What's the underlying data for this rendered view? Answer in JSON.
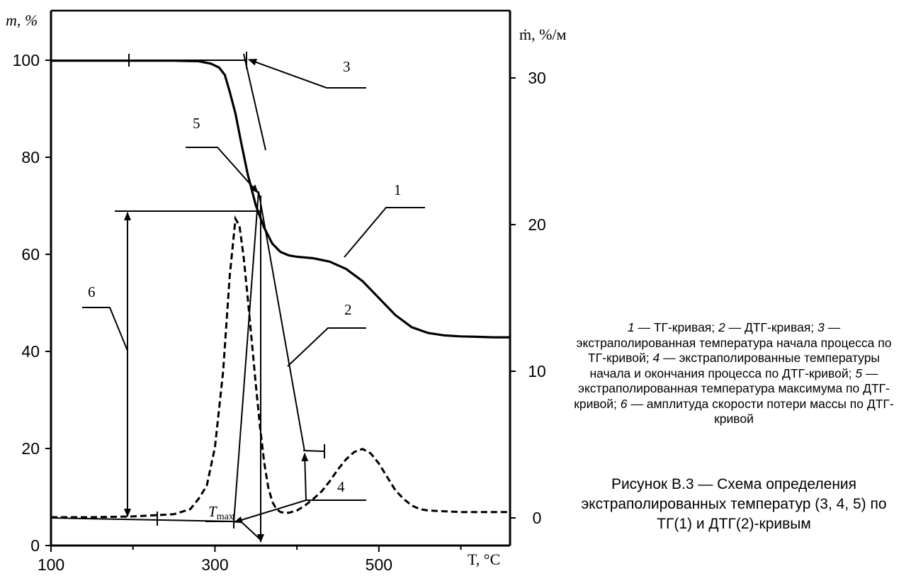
{
  "chart_data": {
    "type": "line",
    "title": "Рисунок В.3 — Схема определения экстраполированных температур (3, 4, 5) по ТГ(1) и ДТГ(2)-кривым",
    "xlabel": "T, °C",
    "ylabel_left": "m, %",
    "ylabel_right": "ṁ, %/мин",
    "xlim": [
      100,
      660
    ],
    "ylim_left": [
      0,
      100
    ],
    "ylim_right": [
      -4.6,
      37
    ],
    "x_ticks": [
      100,
      300,
      500
    ],
    "y_left_ticks": [
      0,
      20,
      40,
      60,
      80,
      100
    ],
    "y_right_ticks": [
      0,
      10,
      20,
      30
    ],
    "grid": false,
    "legend": "none",
    "series": [
      {
        "name": "1",
        "axis": "left",
        "style": "solid",
        "x": [
          100,
          150,
          200,
          250,
          280,
          295,
          305,
          312,
          318,
          325,
          332,
          340,
          350,
          360,
          370,
          380,
          390,
          400,
          420,
          440,
          460,
          480,
          500,
          520,
          540,
          560,
          580,
          600,
          620,
          640,
          660
        ],
        "y": [
          99.9,
          99.9,
          99.9,
          99.9,
          99.8,
          99.3,
          98.5,
          97,
          93.5,
          89,
          83,
          76.5,
          70,
          65.5,
          62.2,
          60.5,
          59.8,
          59.5,
          59.2,
          58.5,
          57,
          54.5,
          51,
          47.5,
          45,
          43.8,
          43.3,
          43.1,
          43,
          42.9,
          42.9
        ]
      },
      {
        "name": "2",
        "axis": "right",
        "style": "dashed",
        "x": [
          100,
          150,
          200,
          250,
          270,
          280,
          290,
          300,
          310,
          318,
          325,
          330,
          335,
          340,
          345,
          350,
          355,
          360,
          365,
          370,
          375,
          380,
          385,
          390,
          400,
          410,
          420,
          430,
          440,
          450,
          460,
          470,
          480,
          490,
          500,
          510,
          520,
          530,
          540,
          550,
          560,
          600,
          660
        ],
        "y": [
          0.05,
          0.05,
          0.1,
          0.25,
          0.6,
          1.3,
          2.2,
          4.8,
          10,
          16.5,
          20.4,
          19.9,
          17.8,
          15,
          12,
          9,
          6.2,
          3.8,
          2.1,
          1.1,
          0.6,
          0.4,
          0.35,
          0.35,
          0.5,
          0.85,
          1.3,
          1.8,
          2.5,
          3.3,
          4.0,
          4.5,
          4.7,
          4.4,
          3.7,
          2.8,
          1.9,
          1.3,
          0.85,
          0.6,
          0.5,
          0.4,
          0.4
        ]
      }
    ],
    "annotations": {
      "callout_3": "3",
      "callout_5": "5",
      "callout_1": "1",
      "callout_2": "2",
      "callout_6": "6",
      "callout_4": "4",
      "t_max": "T",
      "t_max_sub": "max"
    },
    "caption_parts": [
      {
        "t": "1",
        "italic": true
      },
      {
        "t": " — ТГ-кривая; ",
        "italic": false
      },
      {
        "t": "2",
        "italic": true
      },
      {
        "t": " — ДТГ-кривая; ",
        "italic": false
      },
      {
        "t": "3",
        "italic": true
      },
      {
        "t": " — экстраполированная температура начала процесса по ТГ-кривой; ",
        "italic": false
      },
      {
        "t": "4",
        "italic": true
      },
      {
        "t": " — экстраполированные температуры начала и окончания процесса по ДТГ-кривой; ",
        "italic": false
      },
      {
        "t": "5",
        "italic": true
      },
      {
        "t": " — экстраполированная температура максимума по ДТГ-кривой; ",
        "italic": false
      },
      {
        "t": "6",
        "italic": true
      },
      {
        "t": " — амплитуда скорости потери массы по ДТГ-кривой",
        "italic": false
      }
    ]
  }
}
